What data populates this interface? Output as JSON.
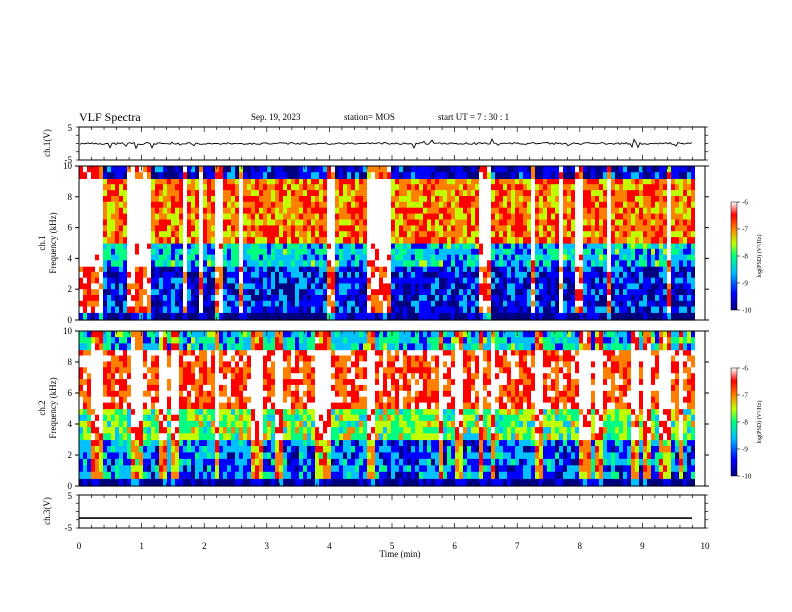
{
  "header": {
    "title": "VLF Spectra",
    "date": "Sep. 19, 2023",
    "station": "station= MOS",
    "start": "start  UT =   7 : 30 : 1"
  },
  "chart_data": [
    {
      "type": "line",
      "name": "ch1-waveform",
      "ylabel": "ch.1(V)",
      "ylim": [
        -5,
        5
      ],
      "ytick_labels": [
        "5",
        "-5"
      ],
      "baseline": 0,
      "description_values": "near-zero signal with small impulsive spikes"
    },
    {
      "type": "heatmap",
      "name": "ch1-spectrogram",
      "ylabel": "ch.1 Frequency (kHz)",
      "ylabel_ch": "ch.1",
      "ylabel_freq": "Frequency (kHz)",
      "ylim": [
        0,
        10
      ],
      "xlim": [
        0,
        10
      ],
      "ytick_labels": [
        "0",
        "2",
        "4",
        "6",
        "8",
        "10"
      ],
      "colorbar": {
        "label": "log(PSD) (V²/Hz)",
        "range": [
          -10,
          -6
        ],
        "ticks": [
          "-6",
          "-7",
          "-8",
          "-9",
          "-10"
        ]
      },
      "bands": [
        {
          "from_khz": 0,
          "to_khz": 0.5,
          "level": -9.8
        },
        {
          "from_khz": 0.5,
          "to_khz": 3.5,
          "level": -9.3
        },
        {
          "from_khz": 3.5,
          "to_khz": 5,
          "level": -8.6
        },
        {
          "from_khz": 5,
          "to_khz": 9.2,
          "level": -7.2
        },
        {
          "from_khz": 9.2,
          "to_khz": 10,
          "level": -9.5
        }
      ]
    },
    {
      "type": "heatmap",
      "name": "ch2-spectrogram",
      "ylabel": "ch.2 Frequency (kHz)",
      "ylabel_ch": "ch.2",
      "ylabel_freq": "Frequency (kHz)",
      "ylim": [
        0,
        10
      ],
      "xlim": [
        0,
        10
      ],
      "ytick_labels": [
        "0",
        "2",
        "4",
        "6",
        "8",
        "10"
      ],
      "colorbar": {
        "label": "log(PSD) (V²/Hz)",
        "range": [
          -10,
          -6
        ],
        "ticks": [
          "-6",
          "-7",
          "-8",
          "-9",
          "-10"
        ]
      },
      "bands": [
        {
          "from_khz": 0,
          "to_khz": 0.5,
          "level": -9.8
        },
        {
          "from_khz": 0.5,
          "to_khz": 3,
          "level": -9.0
        },
        {
          "from_khz": 3,
          "to_khz": 5,
          "level": -8.0
        },
        {
          "from_khz": 5,
          "to_khz": 8.8,
          "level": -6.8
        },
        {
          "from_khz": 8.8,
          "to_khz": 10,
          "level": -8.6
        }
      ]
    },
    {
      "type": "line",
      "name": "ch3-waveform",
      "ylabel": "ch.3(V)",
      "ylim": [
        -5,
        5
      ],
      "ytick_labels": [
        "5",
        "-5"
      ],
      "baseline": -2,
      "xlabel": "Time  (min)",
      "xlim": [
        0,
        10
      ],
      "xtick_labels": [
        "0",
        "1",
        "2",
        "3",
        "4",
        "5",
        "6",
        "7",
        "8",
        "9",
        "10"
      ]
    }
  ],
  "colors": {
    "scale": [
      "#000080",
      "#0000ff",
      "#00c0ff",
      "#00ff80",
      "#c0ff00",
      "#ff8000",
      "#ff0000",
      "#ffffff"
    ]
  }
}
